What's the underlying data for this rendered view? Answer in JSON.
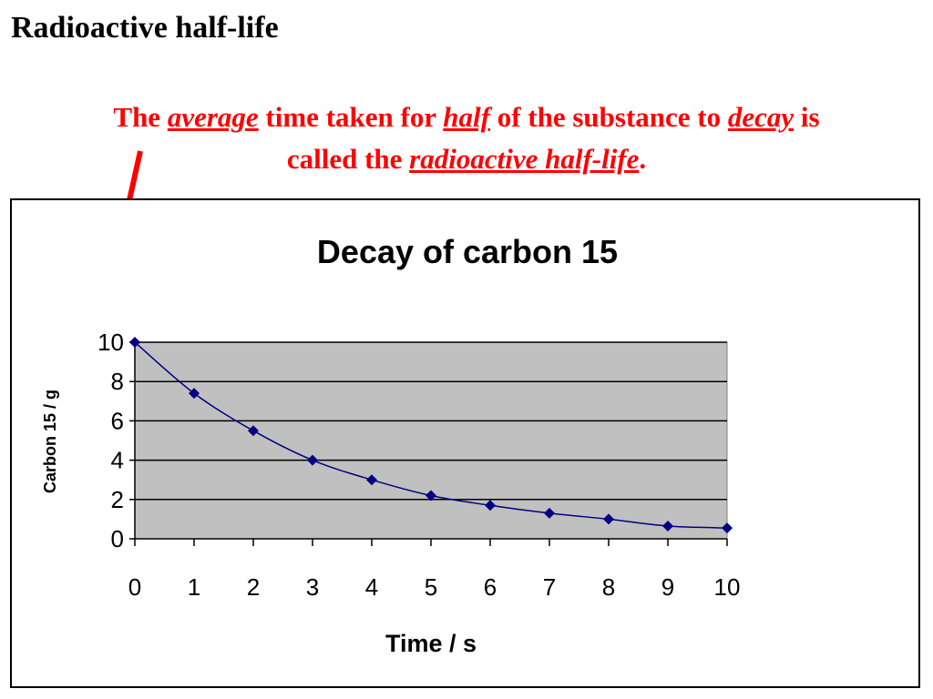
{
  "slide": {
    "title": "Radioactive half-life"
  },
  "definition": {
    "line1": [
      {
        "text": "The ",
        "em": false
      },
      {
        "text": "average",
        "em": true
      },
      {
        "text": " time taken for ",
        "em": false
      },
      {
        "text": "half",
        "em": true
      },
      {
        "text": " of the substance to ",
        "em": false
      },
      {
        "text": "decay",
        "em": true
      },
      {
        "text": " is",
        "em": false
      }
    ],
    "line2": [
      {
        "text": "called the ",
        "em": false
      },
      {
        "text": "radioactive half-life",
        "em": true
      },
      {
        "text": ".",
        "em": false
      }
    ]
  },
  "colors": {
    "definition_text": "#ff0000",
    "plot_background": "#c0c0c0",
    "series_line": "#000080",
    "series_marker": "#000080",
    "gridline": "#000000"
  },
  "chart_data": {
    "type": "line",
    "title": "Decay of carbon 15",
    "xlabel": "Time / s",
    "ylabel": "Carbon 15 / g",
    "x": [
      0,
      1,
      2,
      3,
      4,
      5,
      6,
      7,
      8,
      9,
      10
    ],
    "series": [
      {
        "name": "",
        "values": [
          10,
          7.4,
          5.5,
          4.0,
          3.0,
          2.2,
          1.7,
          1.3,
          1.0,
          0.65,
          0.55
        ]
      }
    ],
    "xlim": [
      0,
      10
    ],
    "ylim": [
      0,
      10
    ],
    "xticks": [
      0,
      1,
      2,
      3,
      4,
      5,
      6,
      7,
      8,
      9,
      10
    ],
    "yticks": [
      0,
      2,
      4,
      6,
      8,
      10
    ],
    "grid": "horizontal",
    "smooth": true,
    "marker": "diamond",
    "legend": "none"
  }
}
